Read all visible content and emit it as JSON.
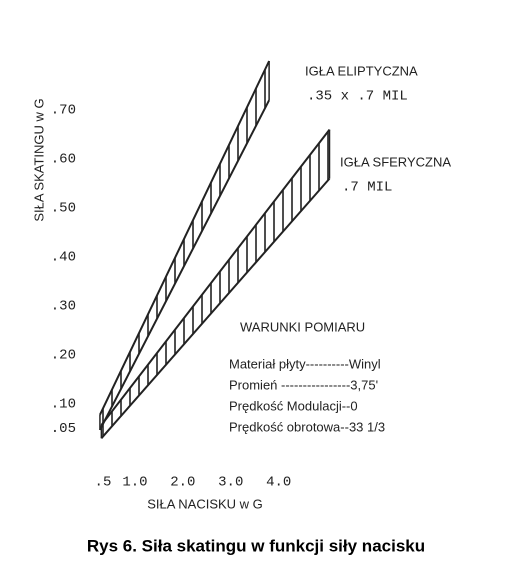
{
  "chart_data": {
    "type": "band",
    "title": "Rys 6. Siła skatingu w funkcji siły nacisku",
    "x_label": "SIŁA NACISKU w G",
    "y_label": "SIŁA SKATINGU w G",
    "xlim": [
      0,
      5.3
    ],
    "ylim": [
      0,
      0.8
    ],
    "xticks": [
      {
        "value": 0.5,
        "label": ".5"
      },
      {
        "value": 1,
        "label": "1.0"
      },
      {
        "value": 2,
        "label": "2.0"
      },
      {
        "value": 3,
        "label": "3.0"
      },
      {
        "value": 4,
        "label": "4.0"
      }
    ],
    "yticks": [
      {
        "value": 0.05,
        "label": ".05"
      },
      {
        "value": 0.1,
        "label": ".10"
      },
      {
        "value": 0.2,
        "label": ".20"
      },
      {
        "value": 0.3,
        "label": ".30"
      },
      {
        "value": 0.4,
        "label": ".40"
      },
      {
        "value": 0.5,
        "label": ".50"
      },
      {
        "value": 0.6,
        "label": ".60"
      },
      {
        "value": 0.7,
        "label": ".70"
      }
    ],
    "series": [
      {
        "name": "IGŁA ELIPTYCZNA",
        "subtitle": ".35 x .7 MIL",
        "color": "#222",
        "x": [
          0.27,
          3.8
        ],
        "lower": [
          0.047,
          0.72
        ],
        "upper": [
          0.078,
          0.8
        ]
      },
      {
        "name": "IGŁA SFERYCZNA",
        "subtitle": ".7 MIL",
        "color": "#222",
        "x": [
          0.3,
          5.06
        ],
        "lower": [
          0.03,
          0.56
        ],
        "upper": [
          0.057,
          0.66
        ]
      }
    ],
    "conditions": {
      "title": "WARUNKI POMIARU",
      "lines": [
        "Materiał płyty----------Winyl",
        "Promień ----------------3,75'",
        "Prędkość Modulacji--0",
        "Prędkość obrotowa--33 1/3"
      ]
    }
  }
}
